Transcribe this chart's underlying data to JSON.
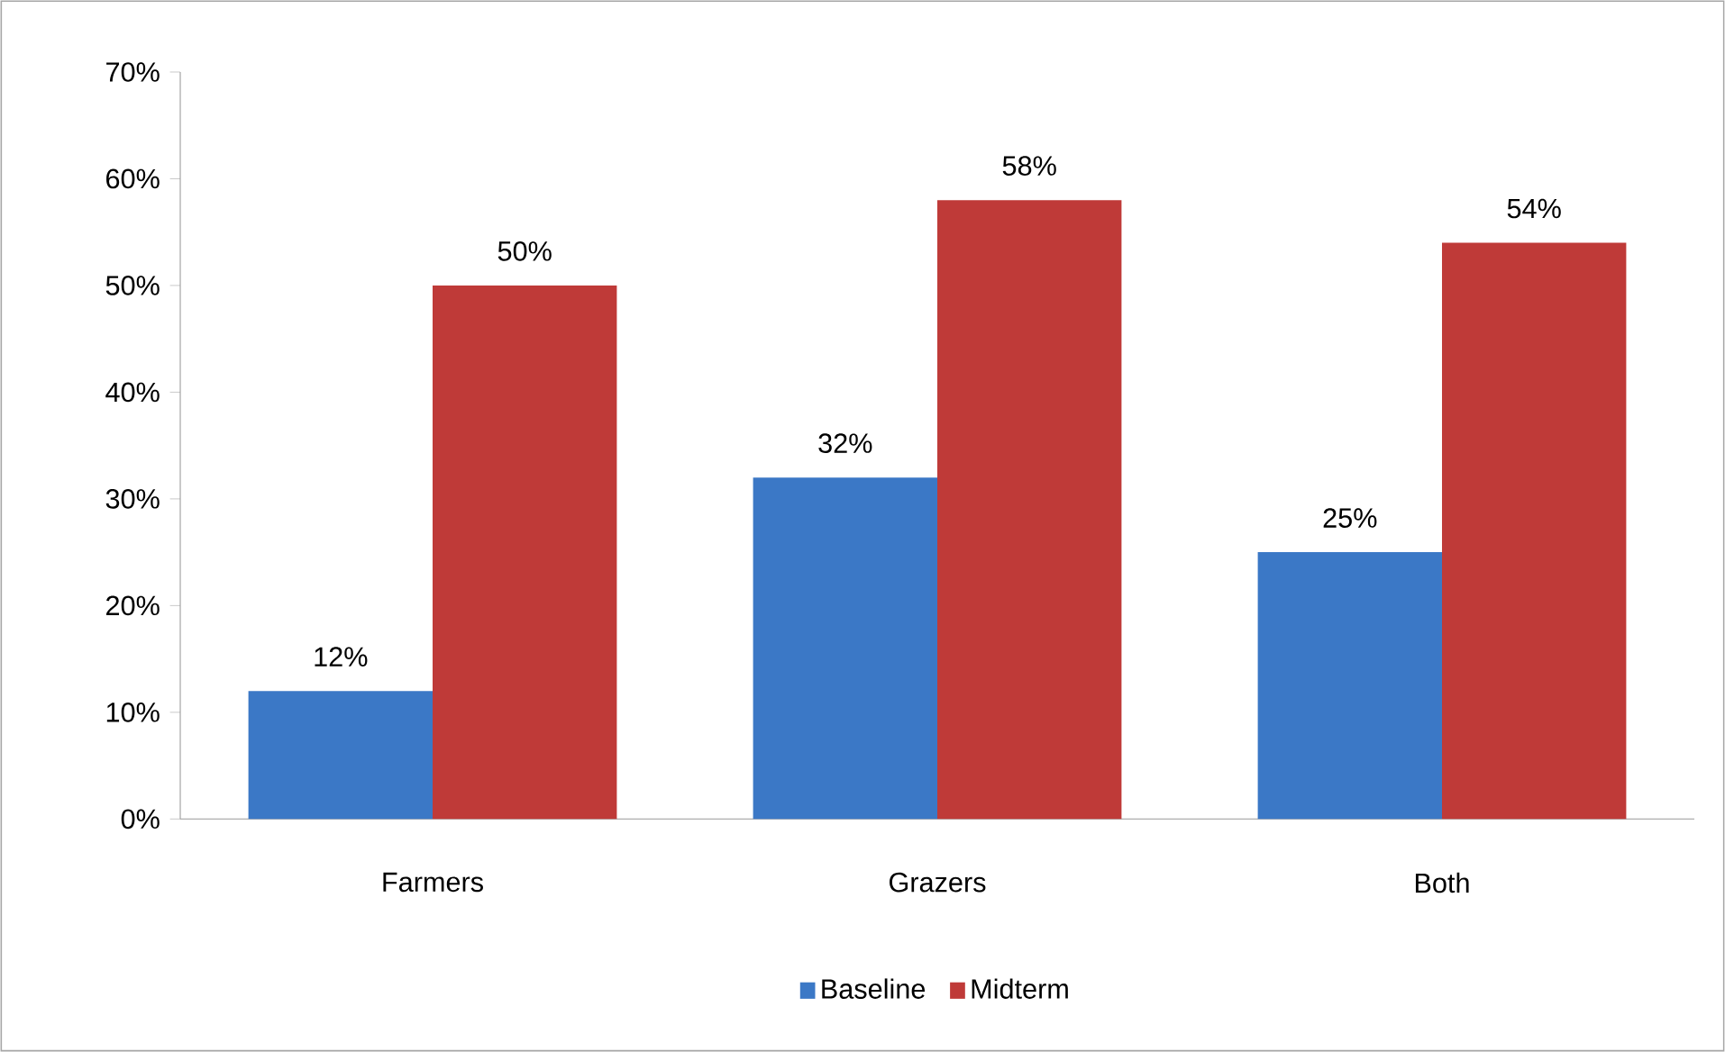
{
  "chart_data": {
    "type": "bar",
    "categories": [
      "Farmers",
      "Grazers",
      "Both"
    ],
    "series": [
      {
        "name": "Baseline",
        "color": "#3b78c6",
        "values": [
          12,
          32,
          25
        ],
        "value_labels": [
          "12%",
          "32%",
          "25%"
        ]
      },
      {
        "name": "Midterm",
        "color": "#bf3a38",
        "values": [
          50,
          58,
          54
        ],
        "value_labels": [
          "50%",
          "58%",
          "54%"
        ]
      }
    ],
    "ylim": [
      0,
      70
    ],
    "yticks": [
      {
        "value": 0,
        "label": "0%"
      },
      {
        "value": 10,
        "label": "10%"
      },
      {
        "value": 20,
        "label": "20%"
      },
      {
        "value": 30,
        "label": "30%"
      },
      {
        "value": 40,
        "label": "40%"
      },
      {
        "value": 50,
        "label": "50%"
      },
      {
        "value": 60,
        "label": "60%"
      },
      {
        "value": 70,
        "label": "70%"
      }
    ],
    "grid": false,
    "legend": "bottom"
  }
}
